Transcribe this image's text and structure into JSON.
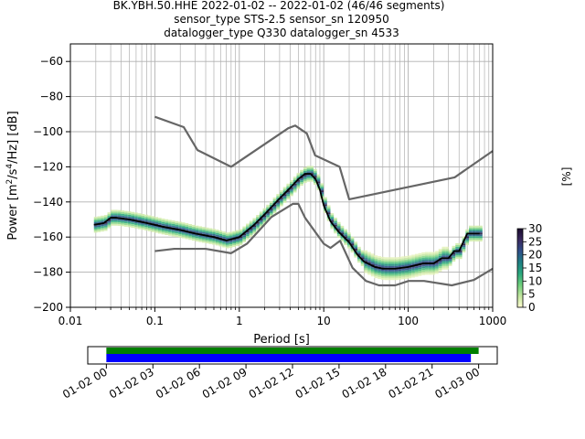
{
  "chart_data": [
    {
      "type": "heatmap",
      "title_lines": [
        "BK.YBH.50.HHE   2022-01-02 -- 2022-01-02  (46/46 segments)",
        "sensor_type STS-2.5 sensor_sn 120950",
        "datalogger_type Q330 datalogger_sn 4533"
      ],
      "xlabel": "Period [s]",
      "ylabel_parts": [
        "Power [m",
        "2",
        "/s",
        "4",
        "/Hz] [dB]"
      ],
      "xscale": "log",
      "xlim": [
        0.01,
        1000
      ],
      "ylim": [
        -200,
        -50
      ],
      "x_ticks": [
        0.01,
        0.1,
        1,
        10,
        100,
        1000
      ],
      "x_tick_labels": [
        "0.01",
        "0.1",
        "1",
        "10",
        "100",
        "1000"
      ],
      "y_ticks": [
        -200,
        -180,
        -160,
        -140,
        -120,
        -100,
        -80,
        -60
      ],
      "y_tick_labels": [
        "−200",
        "−180",
        "−160",
        "−140",
        "−120",
        "−100",
        "−80",
        "−60"
      ],
      "grid": true,
      "series": [
        {
          "role": "median",
          "color": "#000000",
          "x": [
            0.019,
            0.025,
            0.03,
            0.035,
            0.05,
            0.08,
            0.12,
            0.2,
            0.3,
            0.5,
            0.7,
            1.0,
            1.5,
            2,
            3,
            4,
            5,
            6,
            7,
            8,
            9,
            10,
            12,
            15,
            20,
            25,
            30,
            40,
            50,
            70,
            100,
            150,
            200,
            250,
            300,
            350,
            400,
            500,
            700
          ],
          "y": [
            -153,
            -152,
            -149,
            -149,
            -150,
            -152,
            -154,
            -156,
            -158,
            -160,
            -162,
            -160,
            -153,
            -147,
            -138,
            -132,
            -127,
            -124,
            -124,
            -127,
            -133,
            -142,
            -151,
            -157,
            -163,
            -170,
            -174,
            -177,
            -178,
            -178,
            -177,
            -175,
            -175,
            -172,
            -172,
            -168,
            -168,
            -158,
            -158
          ]
        },
        {
          "role": "high-noise-model",
          "color": "#666666",
          "x": [
            0.1,
            0.22,
            0.32,
            0.8,
            3.8,
            4.6,
            6.3,
            7.9,
            15.4,
            20,
            354.8,
            1000
          ],
          "y": [
            -91.5,
            -97.4,
            -110.5,
            -120,
            -98,
            -96.5,
            -101,
            -113.5,
            -120,
            -138.5,
            -126,
            -111
          ]
        },
        {
          "role": "low-noise-model",
          "color": "#666666",
          "x": [
            0.1,
            0.17,
            0.4,
            0.8,
            1.24,
            2.4,
            4.3,
            5.0,
            6.0,
            10.0,
            12.0,
            15.6,
            21.9,
            31.6,
            45,
            70,
            101,
            154,
            328,
            600,
            1000
          ],
          "y": [
            -168,
            -166.7,
            -166.7,
            -169.2,
            -163.7,
            -148.6,
            -141.1,
            -141.1,
            -149,
            -163.8,
            -166.2,
            -162.1,
            -177.5,
            -185,
            -187.5,
            -187.5,
            -185,
            -185,
            -187.5,
            -184.4,
            -178
          ]
        }
      ],
      "colorbar": {
        "label": "[%]",
        "min": 0,
        "max": 30,
        "ticks": [
          0,
          5,
          10,
          15,
          20,
          25,
          30
        ],
        "tick_labels": [
          "0",
          "5",
          "10",
          "15",
          "20",
          "25",
          "30"
        ],
        "colormap": [
          "#fefdd0",
          "#c2e69f",
          "#6ecf7c",
          "#2aa87e",
          "#1f7f84",
          "#2e4f8a",
          "#3a2960",
          "#1b0b2e"
        ]
      }
    },
    {
      "type": "timeline",
      "xlabels": [
        "01-02 00",
        "01-02 03",
        "01-02 06",
        "01-02 09",
        "01-02 12",
        "01-02 15",
        "01-02 18",
        "01-02 21",
        "01-03 00"
      ],
      "x_hours": [
        0,
        3,
        6,
        9,
        12,
        15,
        18,
        21,
        24
      ],
      "xlim_hours": [
        -1.2,
        25.2
      ],
      "bars": [
        {
          "role": "data",
          "color": "#008000",
          "start_hour": 0,
          "end_hour": 24
        },
        {
          "role": "psd-segments",
          "color": "#0000ff",
          "start_hour": 0,
          "end_hour": 23.5
        }
      ]
    }
  ]
}
